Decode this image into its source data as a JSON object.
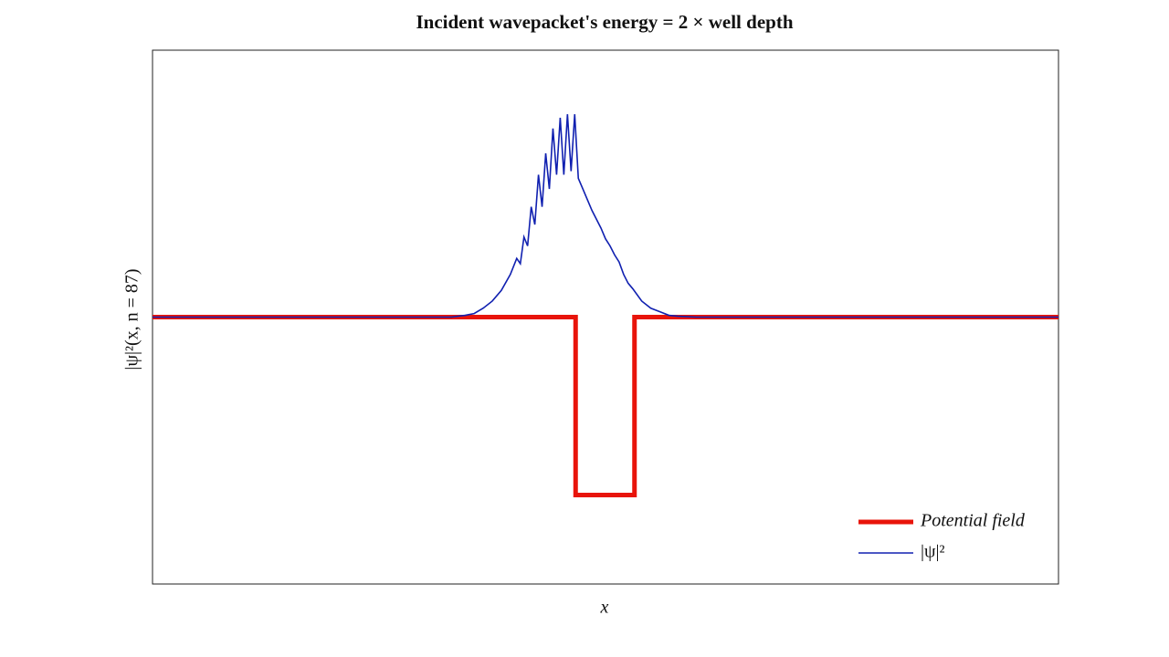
{
  "chart_data": {
    "type": "line",
    "title": "Incident wavepacket's energy = 2 × well depth",
    "x_label": "x",
    "y_label": "|ψ|²(x, n = 87)",
    "xlim": [
      0,
      100
    ],
    "ylim": [
      -1.5,
      1.5
    ],
    "legend": "lower right",
    "series": [
      {
        "name": "Potential field",
        "color": "#e8140a",
        "x": [
          0,
          46.7,
          46.7,
          53.2,
          53.2,
          100
        ],
        "values": [
          0,
          0,
          -1,
          -1,
          0,
          0
        ]
      },
      {
        "name": "|ψ|²",
        "color": "#1020b0",
        "x": [
          0,
          30,
          33,
          34.5,
          35.5,
          36.5,
          37.5,
          38.5,
          39.5,
          40.2,
          40.6,
          41.0,
          41.4,
          41.8,
          42.2,
          42.6,
          43.0,
          43.4,
          43.8,
          44.2,
          44.6,
          45.0,
          45.4,
          45.8,
          46.2,
          46.6,
          47.0,
          47.5,
          48.0,
          48.5,
          49.0,
          49.5,
          50.0,
          50.5,
          51.0,
          51.5,
          52.0,
          52.5,
          53.0,
          54.0,
          55.0,
          56.0,
          57.0,
          58.0,
          60,
          100
        ],
        "values": [
          0,
          0,
          0,
          0.01,
          0.02,
          0.05,
          0.09,
          0.15,
          0.24,
          0.33,
          0.3,
          0.45,
          0.4,
          0.62,
          0.52,
          0.8,
          0.62,
          0.92,
          0.72,
          1.06,
          0.8,
          1.12,
          0.8,
          1.14,
          0.82,
          1.14,
          0.78,
          0.72,
          0.66,
          0.6,
          0.55,
          0.5,
          0.44,
          0.4,
          0.35,
          0.31,
          0.24,
          0.19,
          0.16,
          0.09,
          0.05,
          0.03,
          0.01,
          0.005,
          0,
          0
        ]
      }
    ]
  }
}
